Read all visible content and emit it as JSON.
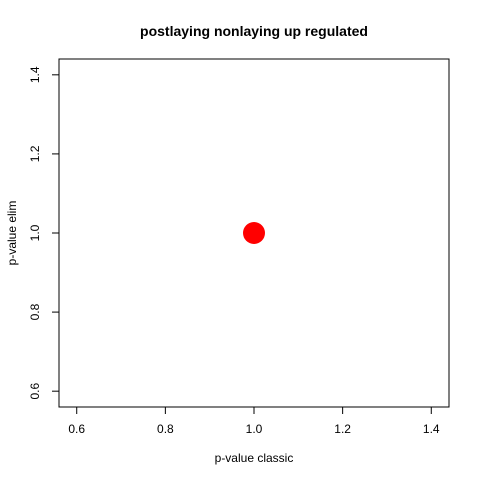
{
  "chart_data": {
    "type": "scatter",
    "title": "postlaying nonlaying up regulated",
    "xlabel": "p-value classic",
    "ylabel": "p-value elim",
    "xlim": [
      0.56,
      1.44
    ],
    "ylim": [
      0.56,
      1.44
    ],
    "x_ticks": [
      "0.6",
      "0.8",
      "1.0",
      "1.2",
      "1.4"
    ],
    "y_ticks": [
      "0.6",
      "0.8",
      "1.0",
      "1.2",
      "1.4"
    ],
    "points": [
      {
        "x": 1.0,
        "y": 1.0
      }
    ],
    "point_color": "#ff0000",
    "grid": false
  }
}
